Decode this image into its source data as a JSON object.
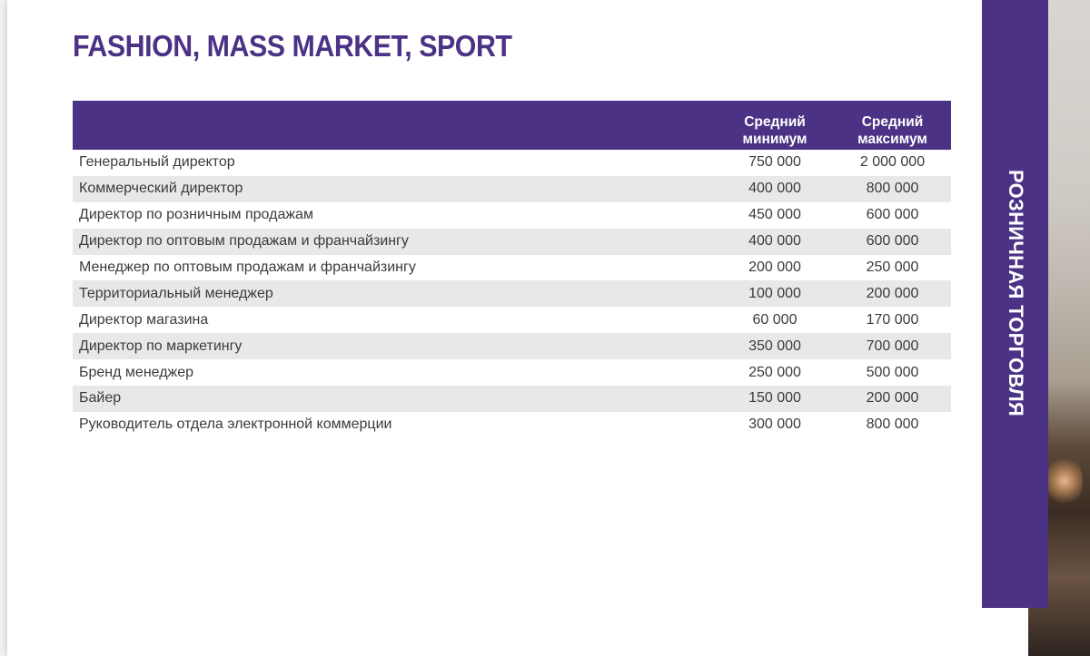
{
  "title": "FASHION, MASS MARKET, SPORT",
  "side_label": "РОЗНИЧНАЯ ТОРГОВЛЯ",
  "colors": {
    "accent": "#4b3285",
    "stripe": "#e8e8e8",
    "text": "#3b3b3b"
  },
  "table": {
    "headers": {
      "position": "",
      "min": "Средний минимум",
      "max": "Средний максимум"
    },
    "rows": [
      {
        "position": "Генеральный директор",
        "min": "750 000",
        "max": "2 000 000"
      },
      {
        "position": "Коммерческий директор",
        "min": "400 000",
        "max": "800 000"
      },
      {
        "position": "Директор по розничным продажам",
        "min": "450 000",
        "max": "600 000"
      },
      {
        "position": "Директор по оптовым продажам и франчайзингу",
        "min": "400 000",
        "max": "600 000"
      },
      {
        "position": "Менеджер по оптовым продажам и франчайзингу",
        "min": "200 000",
        "max": "250 000"
      },
      {
        "position": "Территориальный менеджер",
        "min": "100 000",
        "max": "200 000"
      },
      {
        "position": "Директор магазина",
        "min": "60 000",
        "max": "170 000"
      },
      {
        "position": "Директор по маркетингу",
        "min": "350 000",
        "max": "700 000"
      },
      {
        "position": "Бренд менеджер",
        "min": "250 000",
        "max": "500 000"
      },
      {
        "position": "Байер",
        "min": "150 000",
        "max": "200 000"
      },
      {
        "position": "Руководитель отдела электронной коммерции",
        "min": "300 000",
        "max": "800 000"
      }
    ]
  }
}
